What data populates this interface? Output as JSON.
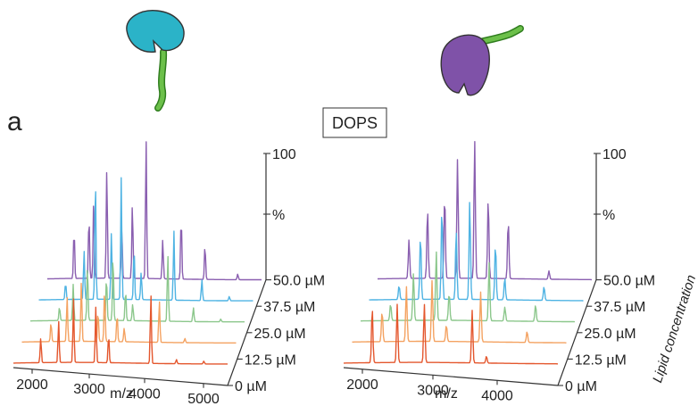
{
  "panel_letter": "a",
  "chart_data": [
    {
      "type": "line",
      "title": "DOPS",
      "xlabel": "m/z",
      "x_ticks": [
        "2000",
        "3000",
        "4000",
        "5000"
      ],
      "xlim": [
        1700,
        5300
      ],
      "y_ticks": [
        "100",
        "%"
      ],
      "ylim": [
        0,
        100
      ],
      "depth_axis_label": "Lipid concentration",
      "grid": false,
      "series": [
        {
          "name": "0 µM",
          "color": "#e4572e",
          "peaks": [
            [
              2160,
              18
            ],
            [
              2460,
              30
            ],
            [
              2710,
              46
            ],
            [
              3085,
              40
            ],
            [
              3300,
              20
            ],
            [
              4010,
              50
            ],
            [
              4440,
              3
            ],
            [
              4900,
              2
            ]
          ]
        },
        {
          "name": "12.5 µM",
          "color": "#f4a261",
          "peaks": [
            [
              2190,
              14
            ],
            [
              2460,
              32
            ],
            [
              2700,
              44
            ],
            [
              2980,
              22
            ],
            [
              3090,
              38
            ],
            [
              3300,
              20
            ],
            [
              3420,
              10
            ],
            [
              4010,
              30
            ],
            [
              4440,
              3
            ]
          ]
        },
        {
          "name": "25.0 µM",
          "color": "#8cc78c",
          "peaks": [
            [
              2190,
              10
            ],
            [
              2420,
              26
            ],
            [
              2660,
              40
            ],
            [
              2980,
              32
            ],
            [
              3090,
              48
            ],
            [
              3300,
              22
            ],
            [
              3420,
              12
            ],
            [
              4010,
              48
            ],
            [
              4440,
              10
            ],
            [
              4900,
              2
            ]
          ]
        },
        {
          "name": "37.5 µM",
          "color": "#4fb3e3",
          "peaks": [
            [
              2150,
              12
            ],
            [
              2460,
              35
            ],
            [
              2650,
              90
            ],
            [
              2920,
              48
            ],
            [
              3085,
              88
            ],
            [
              3300,
              38
            ],
            [
              3420,
              20
            ],
            [
              3970,
              50
            ],
            [
              4440,
              15
            ],
            [
              4900,
              3
            ]
          ]
        },
        {
          "name": "50.0 µM",
          "color": "#8a5fb0",
          "peaks": [
            [
              2150,
              35
            ],
            [
              2400,
              45
            ],
            [
              2480,
              58
            ],
            [
              2700,
              80
            ],
            [
              2950,
              40
            ],
            [
              3130,
              55
            ],
            [
              3360,
              100
            ],
            [
              3640,
              28
            ],
            [
              3950,
              45
            ],
            [
              4350,
              25
            ],
            [
              4900,
              4
            ]
          ]
        }
      ]
    },
    {
      "type": "line",
      "title": "",
      "xlabel": "m/z",
      "x_ticks": [
        "2000",
        "3000",
        "4000"
      ],
      "xlim": [
        1700,
        4700
      ],
      "y_ticks": [
        "100",
        "%"
      ],
      "ylim": [
        0,
        100
      ],
      "depth_axis_label": "Lipid concentration",
      "grid": false,
      "series": [
        {
          "name": "0 µM",
          "color": "#e4572e",
          "peaks": [
            [
              2100,
              40
            ],
            [
              2450,
              42
            ],
            [
              2830,
              42
            ],
            [
              3500,
              38
            ],
            [
              3700,
              5
            ]
          ]
        },
        {
          "name": "12.5 µM",
          "color": "#f4a261",
          "peaks": [
            [
              2120,
              22
            ],
            [
              2460,
              40
            ],
            [
              2820,
              44
            ],
            [
              3020,
              12
            ],
            [
              3500,
              36
            ],
            [
              4150,
              8
            ]
          ]
        },
        {
          "name": "25.0 µM",
          "color": "#8cc78c",
          "peaks": [
            [
              2120,
              12
            ],
            [
              2440,
              34
            ],
            [
              2760,
              50
            ],
            [
              2940,
              20
            ],
            [
              3500,
              42
            ],
            [
              3720,
              10
            ],
            [
              4150,
              12
            ]
          ]
        },
        {
          "name": "37.5 µM",
          "color": "#4fb3e3",
          "peaks": [
            [
              2120,
              10
            ],
            [
              2420,
              46
            ],
            [
              2720,
              66
            ],
            [
              2920,
              50
            ],
            [
              3110,
              72
            ],
            [
              3470,
              40
            ],
            [
              3600,
              16
            ],
            [
              4150,
              10
            ]
          ]
        },
        {
          "name": "50.0 µM",
          "color": "#8a5fb0",
          "peaks": [
            [
              2140,
              28
            ],
            [
              2400,
              50
            ],
            [
              2640,
              60
            ],
            [
              2820,
              86
            ],
            [
              3060,
              100
            ],
            [
              3250,
              58
            ],
            [
              3530,
              42
            ],
            [
              4100,
              6
            ]
          ]
        }
      ]
    }
  ]
}
